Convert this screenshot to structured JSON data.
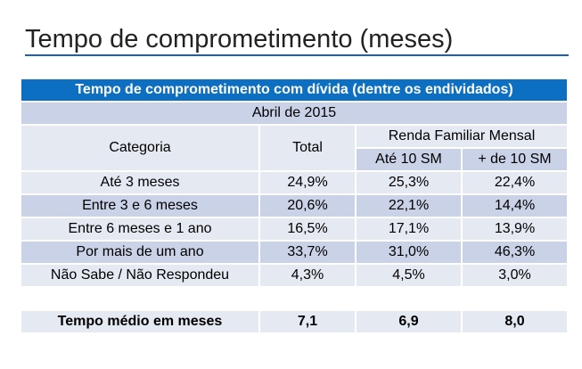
{
  "page_title": "Tempo de comprometimento (meses)",
  "table": {
    "banner": "Tempo de comprometimento com dívida (dentre os endividados)",
    "date": "Abril de 2015",
    "headers": {
      "categoria": "Categoria",
      "total": "Total",
      "renda": "Renda Familiar Mensal",
      "ate10": "Até 10 SM",
      "mais10": "+ de 10 SM"
    },
    "rows": [
      {
        "categoria": "Até 3 meses",
        "total": "24,9%",
        "ate10": "25,3%",
        "mais10": "22,4%"
      },
      {
        "categoria": "Entre 3 e 6 meses",
        "total": "20,6%",
        "ate10": "22,1%",
        "mais10": "14,4%"
      },
      {
        "categoria": "Entre 6 meses e 1 ano",
        "total": "16,5%",
        "ate10": "17,1%",
        "mais10": "13,9%"
      },
      {
        "categoria": "Por mais de um ano",
        "total": "33,7%",
        "ate10": "31,0%",
        "mais10": "46,3%"
      },
      {
        "categoria": "Não Sabe / Não Respondeu",
        "total": "4,3%",
        "ate10": "4,5%",
        "mais10": "3,0%"
      }
    ],
    "summary": {
      "categoria": "Tempo médio em meses",
      "total": "7,1",
      "ate10": "6,9",
      "mais10": "8,0"
    }
  },
  "colors": {
    "banner": "#0d6fc2",
    "title_rule": "#1b60b9",
    "row_dark": "#c9d2e6",
    "row_light": "#e5e9f2"
  }
}
